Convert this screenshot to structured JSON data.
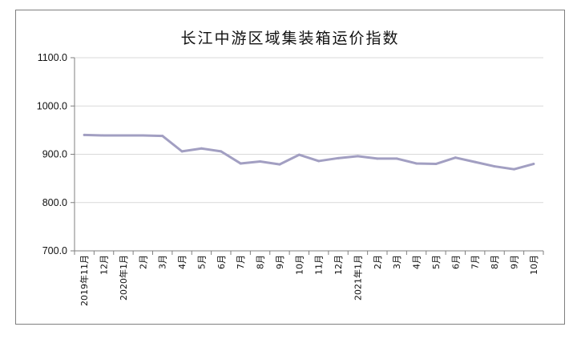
{
  "chart_data": {
    "type": "line",
    "title": "长江中游区域集装箱运价指数",
    "xlabel": "",
    "ylabel": "",
    "ylim": [
      700,
      1100
    ],
    "yticks": [
      "1100.0",
      "1000.0",
      "900.0",
      "800.0",
      "700.0"
    ],
    "categories": [
      "2019年11月",
      "12月",
      "2020年1月",
      "2月",
      "3月",
      "4月",
      "5月",
      "6月",
      "7月",
      "8月",
      "9月",
      "10月",
      "11月",
      "12月",
      "2021年1月",
      "2月",
      "3月",
      "4月",
      "5月",
      "6月",
      "7月",
      "8月",
      "9月",
      "10月"
    ],
    "series": [
      {
        "values": [
          940,
          939,
          939,
          939,
          938,
          906,
          912,
          906,
          881,
          885,
          879,
          899,
          886,
          892,
          896,
          891,
          891,
          881,
          880,
          893,
          884,
          875,
          869,
          880
        ]
      }
    ],
    "line_color": "#a29fc2",
    "grid": true,
    "legend": "none"
  }
}
